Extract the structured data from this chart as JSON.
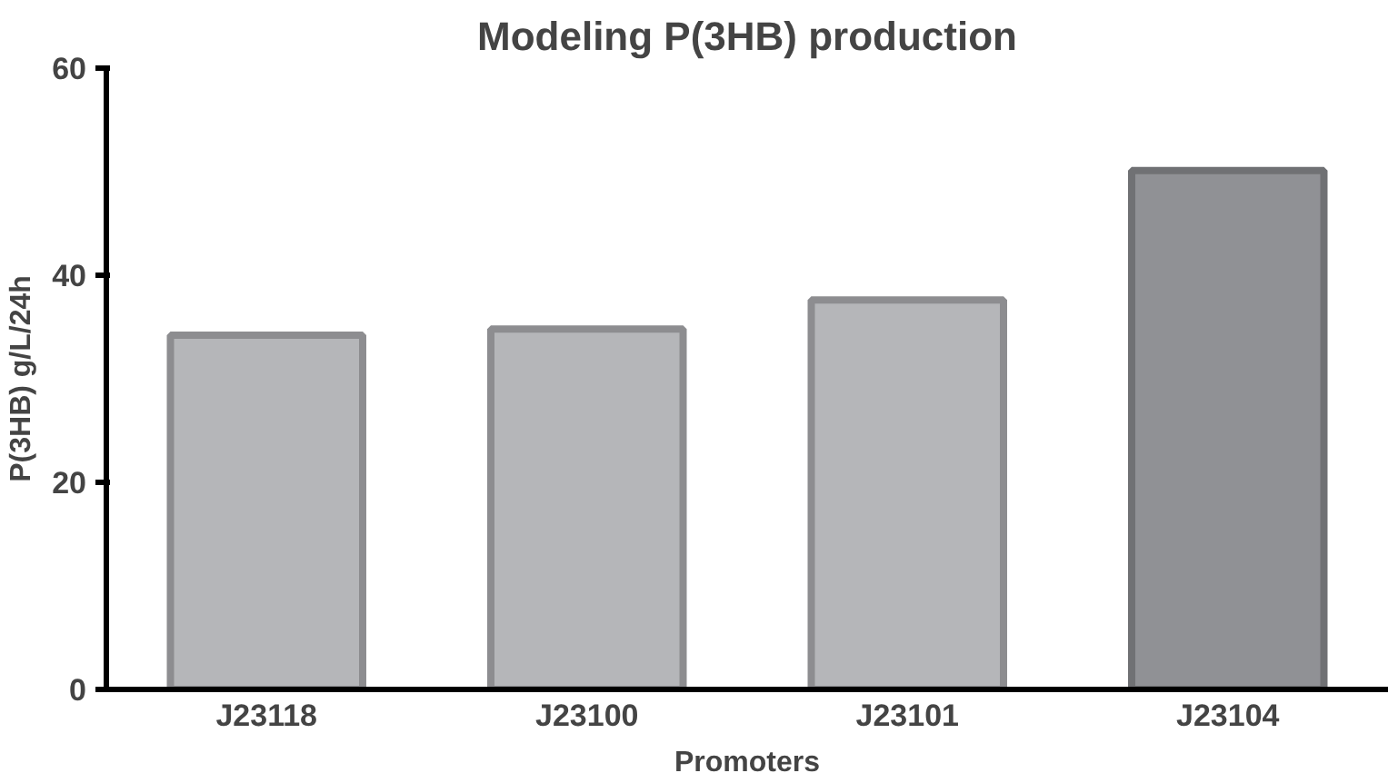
{
  "chart_data": {
    "type": "bar",
    "title": "Modeling P(3HB) production",
    "xlabel": "Promoters",
    "ylabel": "P(3HB) g/L/24h",
    "categories": [
      "J23118",
      "J23100",
      "J23101",
      "J23104"
    ],
    "values": [
      34.2,
      34.8,
      37.6,
      50.1
    ],
    "colors": [
      "#b5b6b9",
      "#b5b6b9",
      "#b5b6b9",
      "#909195"
    ],
    "ylim": [
      0,
      60
    ],
    "yticks": [
      0,
      20,
      40,
      60
    ],
    "grid": false
  }
}
